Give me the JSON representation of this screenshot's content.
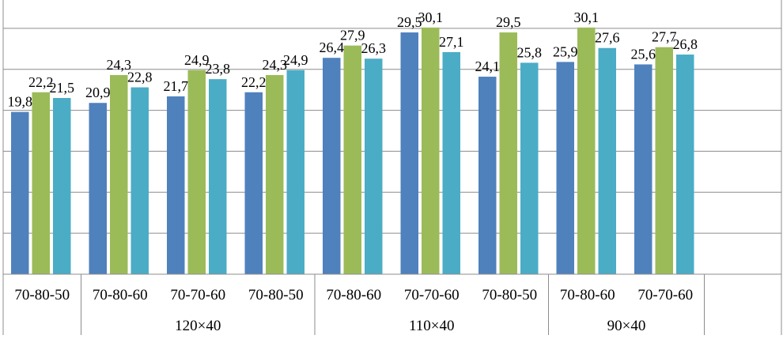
{
  "chart_data": {
    "type": "bar",
    "title": "",
    "xlabel": "",
    "ylabel": "",
    "ylim": [
      0,
      35
    ],
    "grid": true,
    "legend": "none",
    "categories": [
      "70-80-50",
      "70-80-60",
      "70-70-60",
      "70-80-50",
      "70-80-60",
      "70-70-60",
      "70-80-50",
      "70-80-60",
      "70-70-60"
    ],
    "groups": [
      {
        "label": "",
        "span": 1
      },
      {
        "label": "120×40",
        "span": 3
      },
      {
        "label": "110×40",
        "span": 3
      },
      {
        "label": "90×40",
        "span": 2
      }
    ],
    "series": [
      {
        "color": "#4f81bd",
        "values": [
          19.8,
          20.9,
          21.7,
          22.2,
          26.4,
          29.5,
          24.1,
          25.9,
          25.6
        ],
        "labels": [
          "19,8",
          "20,9",
          "21,7",
          "22,2",
          "26,4",
          "29,5",
          "24,1",
          "25,9",
          "25,6"
        ]
      },
      {
        "color": "#9bbb59",
        "values": [
          22.2,
          24.3,
          24.9,
          24.3,
          27.9,
          30.1,
          29.5,
          30.1,
          27.7
        ],
        "labels": [
          "22,2",
          "24,3",
          "24,9",
          "24,3",
          "27,9",
          "30,1",
          "29,5",
          "30,1",
          "27,7"
        ]
      },
      {
        "color": "#4bacc6",
        "values": [
          21.5,
          22.8,
          23.8,
          24.9,
          26.3,
          27.1,
          25.8,
          27.6,
          26.8
        ],
        "labels": [
          "21,5",
          "22,8",
          "23,8",
          "24,9",
          "26,3",
          "27,1",
          "25,8",
          "27,6",
          "26,8"
        ]
      }
    ]
  }
}
